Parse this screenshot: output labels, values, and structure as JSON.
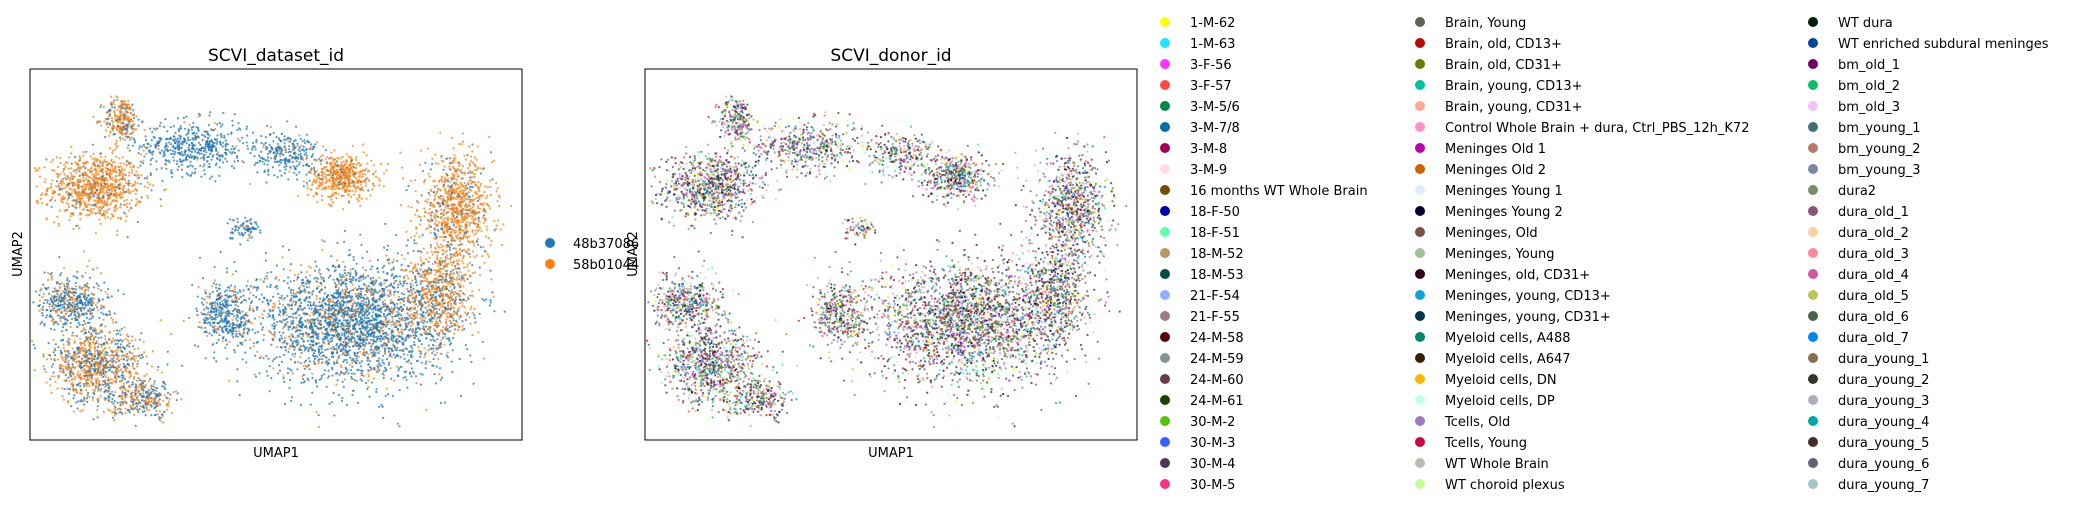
{
  "chart_data": [
    {
      "type": "scatter",
      "title": "SCVI_dataset_id",
      "xlabel": "UMAP1",
      "ylabel": "UMAP2",
      "legend_location": "right",
      "series": [
        {
          "name": "48b37086",
          "color": "#1f77b4"
        },
        {
          "name": "58b01044",
          "color": "#ff7f0e"
        }
      ],
      "clusters": [
        {
          "x": 2.0,
          "y": 5.0,
          "rx": 1.3,
          "ry": 0.9,
          "n": 900,
          "series_mix": [
            0.15,
            0.85
          ]
        },
        {
          "x": 2.8,
          "y": 7.0,
          "rx": 0.5,
          "ry": 0.6,
          "n": 250,
          "series_mix": [
            0.3,
            0.7
          ]
        },
        {
          "x": 5.0,
          "y": 6.2,
          "rx": 1.5,
          "ry": 0.7,
          "n": 500,
          "series_mix": [
            0.95,
            0.05
          ]
        },
        {
          "x": 7.8,
          "y": 6.0,
          "rx": 0.9,
          "ry": 0.6,
          "n": 260,
          "series_mix": [
            0.9,
            0.1
          ]
        },
        {
          "x": 9.5,
          "y": 5.3,
          "rx": 0.9,
          "ry": 0.6,
          "n": 500,
          "series_mix": [
            0.1,
            0.9
          ]
        },
        {
          "x": 13.0,
          "y": 4.3,
          "rx": 1.0,
          "ry": 1.4,
          "n": 900,
          "series_mix": [
            0.15,
            0.85
          ]
        },
        {
          "x": 9.8,
          "y": 1.0,
          "rx": 2.6,
          "ry": 1.6,
          "n": 2600,
          "series_mix": [
            0.8,
            0.2
          ]
        },
        {
          "x": 6.0,
          "y": 1.2,
          "rx": 0.8,
          "ry": 0.9,
          "n": 400,
          "series_mix": [
            0.85,
            0.15
          ]
        },
        {
          "x": 12.5,
          "y": 1.8,
          "rx": 0.9,
          "ry": 1.2,
          "n": 600,
          "series_mix": [
            0.3,
            0.7
          ]
        },
        {
          "x": 1.3,
          "y": 1.6,
          "rx": 1.0,
          "ry": 0.7,
          "n": 500,
          "series_mix": [
            0.7,
            0.3
          ]
        },
        {
          "x": 2.0,
          "y": -0.3,
          "rx": 1.3,
          "ry": 1.0,
          "n": 900,
          "series_mix": [
            0.45,
            0.55
          ]
        },
        {
          "x": 3.5,
          "y": -1.3,
          "rx": 0.9,
          "ry": 0.5,
          "n": 300,
          "series_mix": [
            0.6,
            0.4
          ]
        },
        {
          "x": 6.5,
          "y": 3.8,
          "rx": 0.5,
          "ry": 0.3,
          "n": 80,
          "series_mix": [
            0.9,
            0.1
          ]
        }
      ],
      "xlim": [
        0,
        15
      ],
      "ylim": [
        -2.5,
        8.5
      ],
      "grid": false
    },
    {
      "type": "scatter",
      "title": "SCVI_donor_id",
      "xlabel": "UMAP1",
      "ylabel": "UMAP2",
      "legend_location": "right",
      "legend_columns": 3,
      "series": [
        {
          "name": "1-M-62",
          "color": "#ffff00"
        },
        {
          "name": "1-M-63",
          "color": "#1ce6ff"
        },
        {
          "name": "3-F-56",
          "color": "#ff34ff"
        },
        {
          "name": "3-F-57",
          "color": "#ff4a46"
        },
        {
          "name": "3-M-5/6",
          "color": "#008941"
        },
        {
          "name": "3-M-7/8",
          "color": "#006fa6"
        },
        {
          "name": "3-M-8",
          "color": "#a30059"
        },
        {
          "name": "3-M-9",
          "color": "#ffdbe5"
        },
        {
          "name": "16 months WT Whole Brain",
          "color": "#7a4900"
        },
        {
          "name": "18-F-50",
          "color": "#0000a6"
        },
        {
          "name": "18-F-51",
          "color": "#63ffac"
        },
        {
          "name": "18-M-52",
          "color": "#b79762"
        },
        {
          "name": "18-M-53",
          "color": "#004d43"
        },
        {
          "name": "21-F-54",
          "color": "#8fb0ff"
        },
        {
          "name": "21-F-55",
          "color": "#997d87"
        },
        {
          "name": "24-M-58",
          "color": "#5a0007"
        },
        {
          "name": "24-M-59",
          "color": "#809693"
        },
        {
          "name": "24-M-60",
          "color": "#6a3a4c"
        },
        {
          "name": "24-M-61",
          "color": "#1b4400"
        },
        {
          "name": "30-M-2",
          "color": "#4fc601"
        },
        {
          "name": "30-M-3",
          "color": "#3b5dff"
        },
        {
          "name": "30-M-4",
          "color": "#4a3b53"
        },
        {
          "name": "30-M-5",
          "color": "#ff2f80"
        },
        {
          "name": "Brain, Young",
          "color": "#61615a"
        },
        {
          "name": "Brain, old, CD13+",
          "color": "#ba0900"
        },
        {
          "name": "Brain, old, CD31+",
          "color": "#6b7900"
        },
        {
          "name": "Brain, young, CD13+",
          "color": "#00c2a0"
        },
        {
          "name": "Brain, young, CD31+",
          "color": "#ffaa92"
        },
        {
          "name": "Control Whole Brain + dura, Ctrl_PBS_12h_K72",
          "color": "#ff90c9"
        },
        {
          "name": "Meninges Old 1",
          "color": "#b903aa"
        },
        {
          "name": "Meninges Old 2",
          "color": "#d16100"
        },
        {
          "name": "Meninges Young 1",
          "color": "#ddefff"
        },
        {
          "name": "Meninges Young 2",
          "color": "#000035"
        },
        {
          "name": "Meninges, Old",
          "color": "#7b4f4b"
        },
        {
          "name": "Meninges, Young",
          "color": "#a1c299"
        },
        {
          "name": "Meninges, old, CD31+",
          "color": "#300018"
        },
        {
          "name": "Meninges, young, CD13+",
          "color": "#0aa6d8"
        },
        {
          "name": "Meninges, young, CD31+",
          "color": "#013349"
        },
        {
          "name": "Myeloid cells, A488",
          "color": "#00846f"
        },
        {
          "name": "Myeloid cells, A647",
          "color": "#372101"
        },
        {
          "name": "Myeloid cells, DN",
          "color": "#ffb500"
        },
        {
          "name": "Myeloid cells, DP",
          "color": "#c2ffed"
        },
        {
          "name": "Tcells, Old",
          "color": "#a079bf"
        },
        {
          "name": "Tcells, Young",
          "color": "#cc0744"
        },
        {
          "name": "WT Whole Brain",
          "color": "#c0b9b2"
        },
        {
          "name": "WT choroid plexus",
          "color": "#c2ff99"
        },
        {
          "name": "WT dura",
          "color": "#001e09"
        },
        {
          "name": "WT enriched subdural meninges",
          "color": "#00489c"
        },
        {
          "name": "bm_old_1",
          "color": "#6f0062"
        },
        {
          "name": "bm_old_2",
          "color": "#0cbd66"
        },
        {
          "name": "bm_old_3",
          "color": "#eec3ff"
        },
        {
          "name": "bm_young_1",
          "color": "#456d75"
        },
        {
          "name": "bm_young_2",
          "color": "#b77b68"
        },
        {
          "name": "bm_young_3",
          "color": "#7a87a1"
        },
        {
          "name": "dura2",
          "color": "#788d66"
        },
        {
          "name": "dura_old_1",
          "color": "#885578"
        },
        {
          "name": "dura_old_2",
          "color": "#fad09f"
        },
        {
          "name": "dura_old_3",
          "color": "#ff8a9a"
        },
        {
          "name": "dura_old_4",
          "color": "#d157a0"
        },
        {
          "name": "dura_old_5",
          "color": "#bec459"
        },
        {
          "name": "dura_old_6",
          "color": "#456648"
        },
        {
          "name": "dura_old_7",
          "color": "#0086ed"
        },
        {
          "name": "dura_young_1",
          "color": "#886f4c"
        },
        {
          "name": "dura_young_2",
          "color": "#34362d"
        },
        {
          "name": "dura_young_3",
          "color": "#b4a8bd"
        },
        {
          "name": "dura_young_4",
          "color": "#00a6aa"
        },
        {
          "name": "dura_young_5",
          "color": "#452c2c"
        },
        {
          "name": "dura_young_6",
          "color": "#636375"
        },
        {
          "name": "dura_young_7",
          "color": "#a3c8c9"
        }
      ],
      "xlim": [
        0,
        15
      ],
      "ylim": [
        -2.5,
        8.5
      ],
      "grid": false
    }
  ]
}
